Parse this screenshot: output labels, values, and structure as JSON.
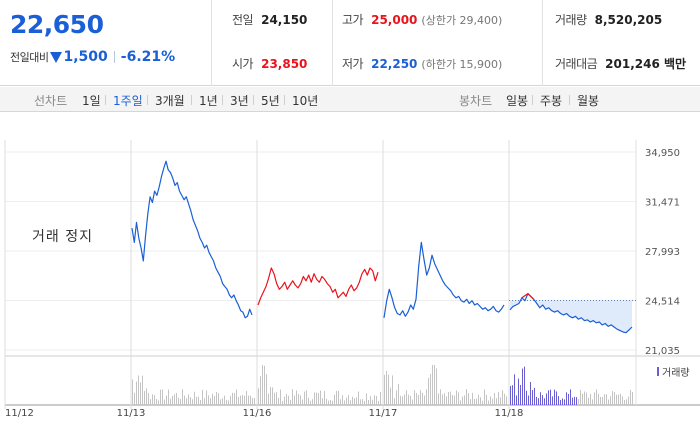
{
  "quote": {
    "price": "22,650",
    "change_label": "전일대비",
    "change_abs": "1,500",
    "change_pct": "-6.21%",
    "prev_close_label": "전일",
    "prev_close": "24,150",
    "open_label": "시가",
    "open": "23,850",
    "high_label": "고가",
    "high": "25,000",
    "upper_limit": "(상한가 29,400)",
    "low_label": "저가",
    "low": "22,250",
    "lower_limit": "(하한가 15,900)",
    "volume_label": "거래량",
    "volume": "8,520,205",
    "turnover_label": "거래대금",
    "turnover": "201,246 백만"
  },
  "period_bar": {
    "line_chart_label": "선차트",
    "line_periods": [
      "1일",
      "1주일",
      "3개월",
      "1년",
      "3년",
      "5년",
      "10년"
    ],
    "active_period": "1주일",
    "candle_chart_label": "봉차트",
    "candle_periods": [
      "일봉",
      "주봉",
      "월봉"
    ]
  },
  "halt_label": "거래 정지",
  "chart_data": {
    "type": "line",
    "title": "",
    "x_tick_labels": [
      "11/12",
      "11/13",
      "11/16",
      "11/17",
      "11/18"
    ],
    "y_tick_labels": [
      "34,950",
      "31,471",
      "27,993",
      "24,514",
      "21,035"
    ],
    "ylim": [
      21035,
      34950
    ],
    "prev_close": 24514,
    "volume_label": "거래량",
    "colors": {
      "line": "#1a5fd6",
      "up_segment": "#e8141c",
      "fill": "#dbe8fb",
      "volume": "#c4c4c4",
      "volume_recent": "#6a5fd0"
    },
    "series": [
      {
        "day": "11/13",
        "values": [
          29600,
          28600,
          30000,
          28900,
          28200,
          27300,
          29100,
          30600,
          31800,
          31400,
          32200,
          31900,
          32500,
          33200,
          33800,
          34300,
          33700,
          33500,
          33100,
          32600,
          32800,
          32200,
          31900,
          31600,
          31800,
          31300,
          30800,
          30200,
          29800,
          29400,
          28900,
          28600,
          28200,
          28400,
          27900,
          27600,
          27300,
          26800,
          26500,
          26200,
          25700,
          25500,
          25300,
          24900,
          24700,
          24900,
          24500,
          24200,
          23800,
          23700,
          23300,
          23400,
          23900,
          23500
        ]
      },
      {
        "day": "11/16",
        "values": [
          24200,
          24700,
          25100,
          25500,
          26100,
          26800,
          26400,
          25700,
          25300,
          25500,
          25800,
          25300,
          25600,
          25900,
          25600,
          25400,
          25700,
          26200,
          25900,
          26300,
          25800,
          26400,
          26000,
          25800,
          26200,
          26000,
          25700,
          25500,
          25100,
          25300,
          24700,
          24900,
          25100,
          24800,
          25300,
          25600,
          25200,
          25400,
          25800,
          26400,
          26700,
          26300,
          26800,
          26600,
          25900,
          26500
        ]
      },
      {
        "day": "11/17",
        "values": [
          23300,
          24500,
          25300,
          24700,
          24000,
          23600,
          23500,
          23800,
          23400,
          23700,
          24200,
          23900,
          24600,
          26900,
          28600,
          27400,
          26300,
          26800,
          27700,
          27100,
          26700,
          26300,
          25900,
          25600,
          25400,
          25200,
          24900,
          24700,
          24800,
          24500,
          24400,
          24600,
          24300,
          24500,
          24200,
          24300,
          24100,
          23900,
          24000,
          23800,
          23900,
          24100,
          23800,
          23700,
          23900,
          24200
        ]
      },
      {
        "day": "11/18",
        "values": [
          23850,
          24100,
          24200,
          24300,
          24700,
          24500,
          25000,
          24800,
          24600,
          24300,
          24000,
          24200,
          23900,
          24000,
          23800,
          23700,
          23800,
          23600,
          23500,
          23600,
          23400,
          23300,
          23400,
          23200,
          23300,
          23100,
          23150,
          23000,
          23100,
          22950,
          23000,
          22800,
          22900,
          22700,
          22800,
          22650,
          22500,
          22400,
          22300,
          22250,
          22450,
          22650
        ]
      }
    ]
  }
}
